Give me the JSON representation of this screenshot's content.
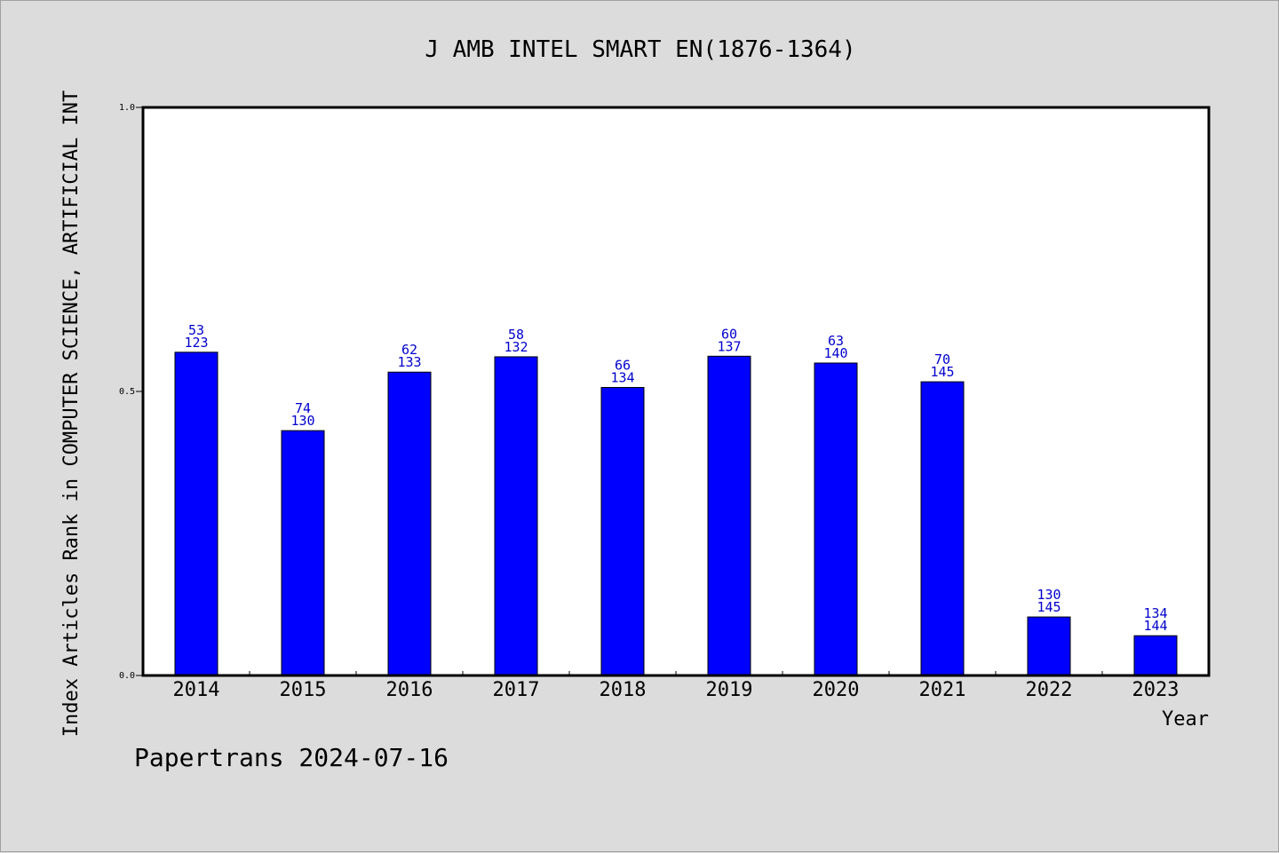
{
  "chart_data": {
    "type": "bar",
    "title": "J AMB INTEL SMART EN(1876-1364)",
    "ylabel": "Index Articles Rank in COMPUTER SCIENCE, ARTIFICIAL INT",
    "xlabel": "Year",
    "footer": "Papertrans 2024-07-16",
    "ylim": [
      0,
      1.0
    ],
    "yticks": [
      {
        "value": 0.0,
        "label": "0.0"
      },
      {
        "value": 0.5,
        "label": "0.5"
      },
      {
        "value": 1.0,
        "label": "1.0"
      }
    ],
    "categories": [
      "2014",
      "2015",
      "2016",
      "2017",
      "2018",
      "2019",
      "2020",
      "2021",
      "2022",
      "2023"
    ],
    "values": [
      0.569,
      0.431,
      0.534,
      0.561,
      0.507,
      0.562,
      0.55,
      0.517,
      0.103,
      0.07
    ],
    "rank": [
      "53",
      "74",
      "62",
      "58",
      "66",
      "60",
      "63",
      "70",
      "130",
      "134"
    ],
    "total": [
      "123",
      "130",
      "133",
      "132",
      "134",
      "137",
      "140",
      "145",
      "145",
      "144"
    ],
    "bar_color": "#0000ff",
    "label_color": "#0000cc",
    "background": "#dcdcdc",
    "plot_background": "#ffffff",
    "grid": false,
    "legend": "none"
  }
}
